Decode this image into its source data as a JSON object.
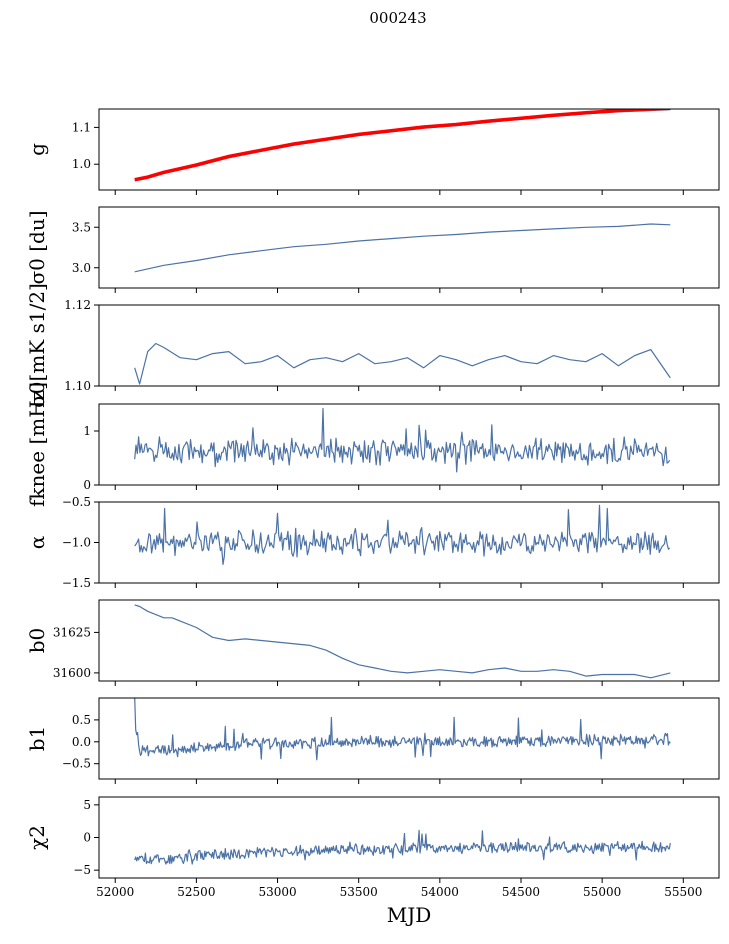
{
  "figure": {
    "title": "000243"
  },
  "chart_data": [
    {
      "type": "line",
      "ylabel": "g",
      "yticks": [
        1.0,
        1.1
      ],
      "ytick_labels": [
        "1.0",
        "1.1"
      ],
      "ylim": [
        0.93,
        1.15
      ],
      "xlim": [
        51900,
        55720
      ],
      "series": [
        {
          "name": "",
          "color": "#4c72a6",
          "x": [
            52120,
            52200,
            52300,
            52500,
            52700,
            52900,
            53100,
            53300,
            53500,
            53700,
            53900,
            54100,
            54300,
            54500,
            54700,
            54900,
            55100,
            55300,
            55420
          ],
          "y": [
            0.955,
            0.962,
            0.975,
            0.995,
            1.018,
            1.035,
            1.052,
            1.065,
            1.078,
            1.088,
            1.098,
            1.105,
            1.114,
            1.122,
            1.13,
            1.137,
            1.142,
            1.146,
            1.148
          ]
        },
        {
          "name": "",
          "color": "#ff0000",
          "x": [
            52120,
            52200,
            52300,
            52500,
            52700,
            52900,
            53100,
            53300,
            53500,
            53700,
            53900,
            54100,
            54300,
            54500,
            54700,
            54900,
            55100,
            55300,
            55420
          ],
          "y": [
            0.958,
            0.965,
            0.978,
            0.998,
            1.021,
            1.038,
            1.055,
            1.068,
            1.081,
            1.091,
            1.101,
            1.108,
            1.117,
            1.125,
            1.133,
            1.14,
            1.146,
            1.15,
            1.152
          ]
        }
      ]
    },
    {
      "type": "line",
      "ylabel": "σ0 [du]",
      "yticks": [
        3.0,
        3.5
      ],
      "ytick_labels": [
        "3.0",
        "3.5"
      ],
      "ylim": [
        2.75,
        3.75
      ],
      "xlim": [
        51900,
        55720
      ],
      "series": [
        {
          "name": "",
          "color": "#4c72a6",
          "x": [
            52120,
            52300,
            52500,
            52700,
            52900,
            53100,
            53300,
            53500,
            53700,
            53900,
            54100,
            54300,
            54500,
            54700,
            54900,
            55100,
            55300,
            55420
          ],
          "y": [
            2.95,
            3.03,
            3.09,
            3.16,
            3.21,
            3.26,
            3.29,
            3.33,
            3.36,
            3.39,
            3.41,
            3.44,
            3.46,
            3.48,
            3.5,
            3.51,
            3.54,
            3.53
          ]
        }
      ]
    },
    {
      "type": "line",
      "ylabel": "σ0[mK s1/2]",
      "yticks": [
        1.1,
        1.12
      ],
      "ytick_labels": [
        "1.10",
        "1.12"
      ],
      "ylim": [
        1.1,
        1.12
      ],
      "xlim": [
        51900,
        55720
      ],
      "series": [
        {
          "name": "",
          "color": "#4c72a6",
          "x": [
            52120,
            52150,
            52200,
            52250,
            52300,
            52400,
            52500,
            52600,
            52700,
            52800,
            52900,
            53000,
            53100,
            53200,
            53300,
            53400,
            53500,
            53600,
            53700,
            53800,
            53900,
            54000,
            54100,
            54200,
            54300,
            54400,
            54500,
            54600,
            54700,
            54800,
            54900,
            55000,
            55100,
            55200,
            55300,
            55420
          ],
          "y": [
            1.1045,
            1.1005,
            1.1085,
            1.1105,
            1.1095,
            1.107,
            1.1065,
            1.108,
            1.1085,
            1.1055,
            1.106,
            1.1075,
            1.1045,
            1.1065,
            1.107,
            1.106,
            1.108,
            1.1055,
            1.106,
            1.107,
            1.1045,
            1.1075,
            1.1065,
            1.105,
            1.1065,
            1.1075,
            1.106,
            1.1055,
            1.1075,
            1.1065,
            1.106,
            1.108,
            1.105,
            1.1075,
            1.109,
            1.102
          ]
        }
      ]
    },
    {
      "type": "line",
      "ylabel": "fknee [mHz]",
      "yticks": [
        0,
        1
      ],
      "ytick_labels": [
        "0",
        "1"
      ],
      "ylim": [
        0,
        1.5
      ],
      "xlim": [
        51900,
        55720
      ],
      "series": [
        {
          "name": "",
          "color": "#4c72a6",
          "noise": {
            "start": 52120,
            "end": 55420,
            "step": 8,
            "base": 0.62,
            "amp": 0.22,
            "spike": 0.25,
            "seed": 7
          }
        }
      ]
    },
    {
      "type": "line",
      "ylabel": "α",
      "yticks": [
        -1.5,
        -1.0,
        -0.5
      ],
      "ytick_labels": [
        "−1.5",
        "−1.0",
        "−0.5"
      ],
      "ylim": [
        -1.5,
        -0.5
      ],
      "xlim": [
        51900,
        55720
      ],
      "series": [
        {
          "name": "",
          "color": "#4c72a6",
          "noise": {
            "start": 52120,
            "end": 55420,
            "step": 8,
            "base": -1.0,
            "amp": 0.14,
            "spike": 0.18,
            "seed": 19
          }
        }
      ]
    },
    {
      "type": "line",
      "ylabel": "b0",
      "yticks": [
        31600,
        31625
      ],
      "ytick_labels": [
        "31600",
        "31625"
      ],
      "ylim": [
        31595,
        31645
      ],
      "xlim": [
        51900,
        55720
      ],
      "series": [
        {
          "name": "",
          "color": "#4c72a6",
          "x": [
            52120,
            52150,
            52200,
            52300,
            52350,
            52400,
            52500,
            52600,
            52700,
            52800,
            53000,
            53200,
            53300,
            53400,
            53500,
            53600,
            53700,
            53800,
            53900,
            54000,
            54100,
            54200,
            54300,
            54400,
            54500,
            54600,
            54700,
            54800,
            54900,
            55000,
            55100,
            55200,
            55300,
            55420
          ],
          "y": [
            31642,
            31641,
            31638,
            31634,
            31634,
            31632,
            31628,
            31622,
            31620,
            31621,
            31619,
            31617,
            31614,
            31609,
            31605,
            31603,
            31601,
            31600,
            31601,
            31602,
            31601,
            31600,
            31602,
            31603,
            31601,
            31601,
            31602,
            31601,
            31598,
            31599,
            31599,
            31599,
            31597,
            31600
          ]
        }
      ]
    },
    {
      "type": "line",
      "ylabel": "b1",
      "yticks": [
        -0.5,
        0.0,
        0.5
      ],
      "ytick_labels": [
        "−0.5",
        "0.0",
        "0.5"
      ],
      "ylim": [
        -0.85,
        1.0
      ],
      "xlim": [
        51900,
        55720
      ],
      "series": [
        {
          "name": "",
          "color": "#4c72a6",
          "noise": {
            "start": 52120,
            "end": 55420,
            "step": 6,
            "base": 0.0,
            "amp": 0.12,
            "spike": 0.3,
            "seed": 31,
            "trend": [
              [
                52120,
                0.55
              ],
              [
                52150,
                -0.2
              ],
              [
                52400,
                -0.2
              ],
              [
                52800,
                -0.05
              ],
              [
                53500,
                0.0
              ],
              [
                54500,
                0.0
              ],
              [
                55420,
                0.05
              ]
            ]
          }
        }
      ]
    },
    {
      "type": "line",
      "ylabel": "χ2",
      "yticks": [
        -5,
        0,
        5
      ],
      "ytick_labels": [
        "−5",
        "0",
        "5"
      ],
      "ylim": [
        -6.2,
        6.2
      ],
      "xlim": [
        51900,
        55720
      ],
      "xticks": [
        52000,
        52500,
        53000,
        53500,
        54000,
        54500,
        55000,
        55500
      ],
      "xtick_labels": [
        "52000",
        "52500",
        "53000",
        "53500",
        "54000",
        "54500",
        "55000",
        "55500"
      ],
      "xlabel": "MJD",
      "series": [
        {
          "name": "",
          "color": "#4c72a6",
          "noise": {
            "start": 52120,
            "end": 55420,
            "step": 6,
            "base": -2.0,
            "amp": 0.8,
            "spike": 1.2,
            "seed": 53,
            "trend": [
              [
                52120,
                -3.2
              ],
              [
                52300,
                -3.5
              ],
              [
                52600,
                -2.6
              ],
              [
                53200,
                -2.0
              ],
              [
                54000,
                -1.6
              ],
              [
                55420,
                -1.5
              ]
            ]
          }
        }
      ]
    }
  ]
}
